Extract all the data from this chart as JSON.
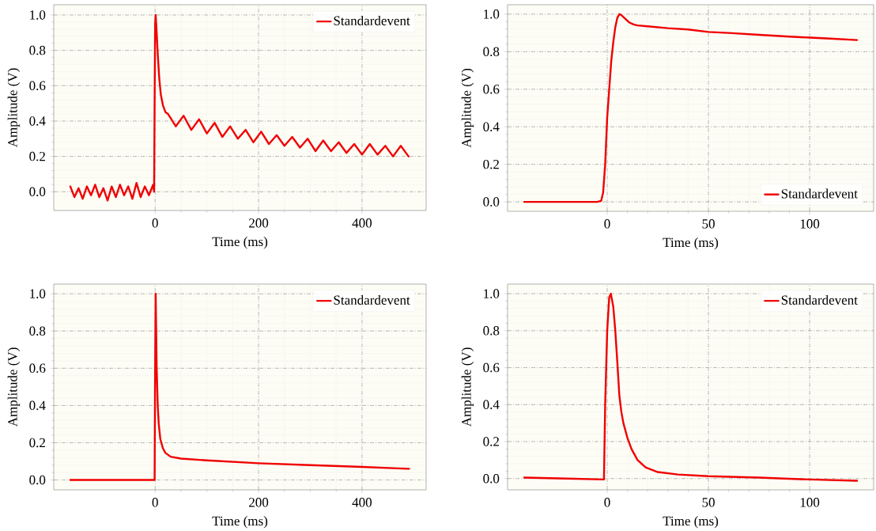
{
  "chart_data": [
    {
      "type": "line",
      "xlabel": "Time (ms)",
      "ylabel": "Amplitude (V)",
      "xlim": [
        -196,
        524
      ],
      "ylim": [
        -0.106,
        1.058
      ],
      "xticks": [
        0,
        200,
        400
      ],
      "yticks": [
        {
          "value": 0,
          "label": "0.0"
        },
        {
          "value": 0.2,
          "label": "0.2"
        },
        {
          "value": 0.4,
          "label": "0.4"
        },
        {
          "value": 0.6,
          "label": "0.6"
        },
        {
          "value": 0.8,
          "label": "0.8"
        },
        {
          "value": 1,
          "label": "1.0"
        }
      ],
      "grid": true,
      "legend": "top right",
      "series": [
        {
          "name": "Standardevent",
          "color": "#f00000",
          "x": [
            -164,
            -156,
            -148,
            -140,
            -132,
            -124,
            -116,
            -108,
            -100,
            -92,
            -84,
            -76,
            -68,
            -60,
            -52,
            -44,
            -36,
            -28,
            -20,
            -12,
            -4,
            -2,
            -1,
            0,
            1,
            3,
            5,
            8,
            11,
            15,
            20,
            25,
            40,
            55,
            70,
            85,
            100,
            115,
            130,
            145,
            160,
            175,
            190,
            205,
            220,
            235,
            250,
            265,
            280,
            295,
            310,
            325,
            340,
            355,
            370,
            385,
            400,
            415,
            430,
            445,
            460,
            475,
            490
          ],
          "values": [
            0.03,
            -0.03,
            0.02,
            -0.04,
            0.03,
            -0.02,
            0.04,
            -0.03,
            0.02,
            -0.05,
            0.03,
            -0.03,
            0.04,
            -0.02,
            0.03,
            -0.04,
            0.05,
            -0.03,
            0.03,
            -0.02,
            0.04,
            0.0,
            0.5,
            0.95,
            1.0,
            0.9,
            0.78,
            0.64,
            0.55,
            0.49,
            0.45,
            0.44,
            0.37,
            0.43,
            0.35,
            0.41,
            0.33,
            0.39,
            0.31,
            0.37,
            0.3,
            0.35,
            0.28,
            0.34,
            0.27,
            0.32,
            0.26,
            0.31,
            0.25,
            0.3,
            0.23,
            0.29,
            0.23,
            0.28,
            0.22,
            0.27,
            0.21,
            0.27,
            0.21,
            0.26,
            0.2,
            0.26,
            0.2
          ]
        }
      ]
    },
    {
      "type": "line",
      "xlabel": "Time (ms)",
      "ylabel": "Amplitude (V)",
      "xlim": [
        -49.2,
        131.6
      ],
      "ylim": [
        -0.05,
        1.05
      ],
      "xticks": [
        0,
        50,
        100
      ],
      "yticks": [
        {
          "value": 0,
          "label": "0.0"
        },
        {
          "value": 0.2,
          "label": "0.2"
        },
        {
          "value": 0.4,
          "label": "0.4"
        },
        {
          "value": 0.6,
          "label": "0.6"
        },
        {
          "value": 0.8,
          "label": "0.8"
        },
        {
          "value": 1,
          "label": "1.0"
        }
      ],
      "grid": true,
      "legend": "bottom right",
      "series": [
        {
          "name": "Standardevent",
          "color": "#f00000",
          "x": [
            -41,
            -20,
            -5,
            -3,
            -2,
            -1,
            0,
            1,
            2,
            3,
            4,
            5,
            6,
            7,
            9,
            11,
            13,
            15,
            20,
            30,
            40,
            50,
            60,
            75,
            90,
            100,
            110,
            123.4
          ],
          "values": [
            0,
            0,
            0,
            0.005,
            0.05,
            0.2,
            0.45,
            0.6,
            0.75,
            0.85,
            0.93,
            0.98,
            1.0,
            0.995,
            0.975,
            0.955,
            0.945,
            0.94,
            0.935,
            0.925,
            0.918,
            0.905,
            0.9,
            0.89,
            0.88,
            0.875,
            0.87,
            0.862
          ]
        }
      ]
    },
    {
      "type": "line",
      "xlabel": "Time (ms)",
      "ylabel": "Amplitude (V)",
      "xlim": [
        -196,
        524
      ],
      "ylim": [
        -0.053,
        1.052
      ],
      "xticks": [
        0,
        200,
        400
      ],
      "yticks": [
        {
          "value": 0,
          "label": "0.0"
        },
        {
          "value": 0.2,
          "label": "0.2"
        },
        {
          "value": 0.4,
          "label": "0.4"
        },
        {
          "value": 0.6,
          "label": "0.6"
        },
        {
          "value": 0.8,
          "label": "0.8"
        },
        {
          "value": 1,
          "label": "1.0"
        }
      ],
      "grid": true,
      "legend": "top right",
      "series": [
        {
          "name": "Standardevent",
          "color": "#f00000",
          "x": [
            -164,
            -2,
            -1,
            0,
            1,
            2,
            3,
            5,
            7,
            10,
            15,
            20,
            30,
            50,
            100,
            200,
            300,
            400,
            491
          ],
          "values": [
            0,
            0,
            0,
            0.6,
            1.0,
            0.8,
            0.6,
            0.4,
            0.3,
            0.22,
            0.17,
            0.145,
            0.125,
            0.115,
            0.105,
            0.09,
            0.08,
            0.07,
            0.06
          ]
        }
      ]
    },
    {
      "type": "line",
      "xlabel": "Time (ms)",
      "ylabel": "Amplitude (V)",
      "xlim": [
        -49.2,
        131.6
      ],
      "ylim": [
        -0.061,
        1.052
      ],
      "xticks": [
        0,
        50,
        100
      ],
      "yticks": [
        {
          "value": 0,
          "label": "0.0"
        },
        {
          "value": 0.2,
          "label": "0.2"
        },
        {
          "value": 0.4,
          "label": "0.4"
        },
        {
          "value": 0.6,
          "label": "0.6"
        },
        {
          "value": 0.8,
          "label": "0.8"
        },
        {
          "value": 1,
          "label": "1.0"
        }
      ],
      "grid": true,
      "legend": "top right",
      "series": [
        {
          "name": "Standardevent",
          "color": "#f00000",
          "x": [
            -41,
            -20,
            -2,
            -1.6,
            -1,
            0,
            1,
            1.8,
            3,
            4,
            5,
            6,
            7,
            8,
            10,
            12,
            15,
            19,
            25,
            35,
            50,
            75,
            100,
            123.4
          ],
          "values": [
            0.005,
            0,
            -0.005,
            -0.005,
            0.4,
            0.8,
            0.98,
            1.0,
            0.93,
            0.8,
            0.63,
            0.45,
            0.36,
            0.3,
            0.22,
            0.16,
            0.1,
            0.06,
            0.035,
            0.022,
            0.013,
            0.005,
            -0.005,
            -0.012
          ]
        }
      ]
    }
  ]
}
